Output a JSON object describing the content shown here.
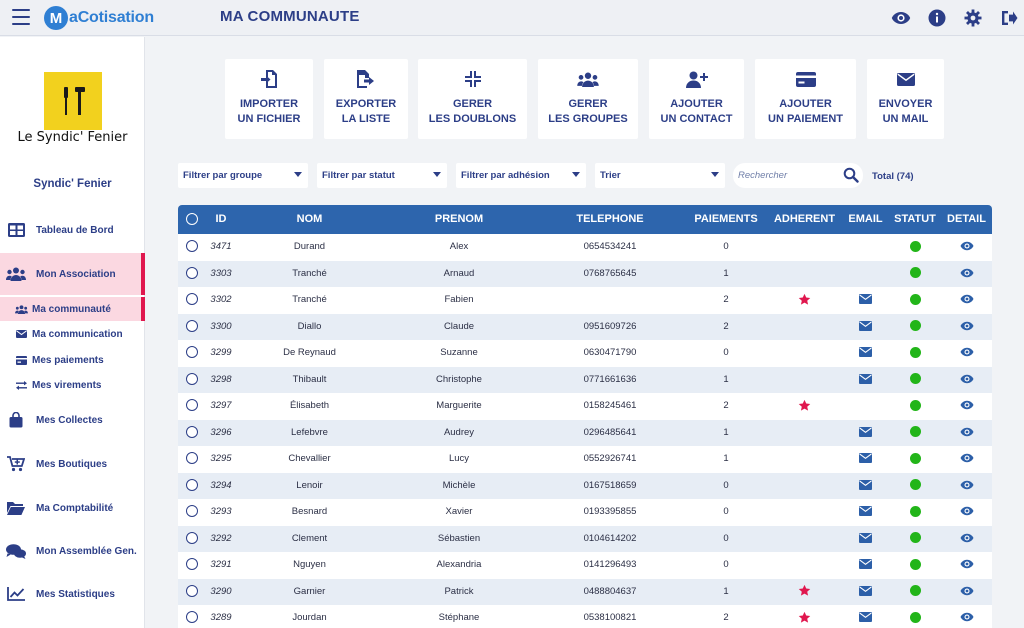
{
  "app": {
    "logo_mark": "M",
    "logo_text": "aCotisation",
    "page_title": "MA COMMUNAUTE",
    "top_icons": [
      "eye-icon",
      "info-icon",
      "gear-icon",
      "logout-icon"
    ]
  },
  "sidebar": {
    "assoc_caption": "Le Syndic' Fenier",
    "assoc_name": "Syndic' Fenier",
    "items": [
      {
        "label": "Tableau de Bord",
        "icon": "dashboard-icon"
      },
      {
        "label": "Mon Association",
        "icon": "users-icon"
      },
      {
        "label": "Ma communauté",
        "icon": "users-small-icon"
      },
      {
        "label": "Ma communication",
        "icon": "envelope-icon"
      },
      {
        "label": "Mes paiements",
        "icon": "card-icon"
      },
      {
        "label": "Mes virements",
        "icon": "transfer-icon"
      },
      {
        "label": "Mes Collectes",
        "icon": "bag-icon"
      },
      {
        "label": "Mes Boutiques",
        "icon": "cart-icon"
      },
      {
        "label": "Ma Comptabilité",
        "icon": "folder-icon"
      },
      {
        "label": "Mon Assemblée Gen.",
        "icon": "chat-icon"
      },
      {
        "label": "Mes Statistiques",
        "icon": "chart-icon"
      }
    ]
  },
  "actions": [
    {
      "label": "IMPORTER\nUN FICHIER",
      "icon": "import-file-icon"
    },
    {
      "label": "EXPORTER\nLA LISTE",
      "icon": "export-file-icon"
    },
    {
      "label": "GERER\nLES DOUBLONS",
      "icon": "compress-icon"
    },
    {
      "label": "GERER\nLES GROUPES",
      "icon": "users-icon"
    },
    {
      "label": "AJOUTER\nUN CONTACT",
      "icon": "user-plus-icon"
    },
    {
      "label": "AJOUTER\nUN PAIEMENT",
      "icon": "card-icon"
    },
    {
      "label": "ENVOYER\nUN MAIL",
      "icon": "envelope-icon"
    }
  ],
  "filters": {
    "group": "Filtrer par groupe",
    "status": "Filtrer par statut",
    "adhesion": "Filtrer par adhésion",
    "sort": "Trier",
    "search_placeholder": "Rechercher",
    "total": "Total (74)"
  },
  "table": {
    "headers": [
      "ID",
      "NOM",
      "PRENOM",
      "TELEPHONE",
      "PAIEMENTS",
      "ADHERENT",
      "EMAIL",
      "STATUT",
      "DETAIL"
    ],
    "status_color": "#22b519",
    "star_color": "#e0174e",
    "rows": [
      {
        "id": "3471",
        "nom": "Durand",
        "prenom": "Alex",
        "tel": "0654534241",
        "paiements": "0",
        "adherent": false,
        "email": false,
        "statut": true
      },
      {
        "id": "3303",
        "nom": "Tranché",
        "prenom": "Arnaud",
        "tel": "0768765645",
        "paiements": "1",
        "adherent": false,
        "email": false,
        "statut": true
      },
      {
        "id": "3302",
        "nom": "Tranché",
        "prenom": "Fabien",
        "tel": "",
        "paiements": "2",
        "adherent": true,
        "email": true,
        "statut": true
      },
      {
        "id": "3300",
        "nom": "Diallo",
        "prenom": "Claude",
        "tel": "0951609726",
        "paiements": "2",
        "adherent": false,
        "email": true,
        "statut": true
      },
      {
        "id": "3299",
        "nom": "De Reynaud",
        "prenom": "Suzanne",
        "tel": "0630471790",
        "paiements": "0",
        "adherent": false,
        "email": true,
        "statut": true
      },
      {
        "id": "3298",
        "nom": "Thibault",
        "prenom": "Christophe",
        "tel": "0771661636",
        "paiements": "1",
        "adherent": false,
        "email": true,
        "statut": true
      },
      {
        "id": "3297",
        "nom": "Élisabeth",
        "prenom": "Marguerite",
        "tel": "0158245461",
        "paiements": "2",
        "adherent": true,
        "email": false,
        "statut": true
      },
      {
        "id": "3296",
        "nom": "Lefebvre",
        "prenom": "Audrey",
        "tel": "0296485641",
        "paiements": "1",
        "adherent": false,
        "email": true,
        "statut": true
      },
      {
        "id": "3295",
        "nom": "Chevallier",
        "prenom": "Lucy",
        "tel": "0552926741",
        "paiements": "1",
        "adherent": false,
        "email": true,
        "statut": true
      },
      {
        "id": "3294",
        "nom": "Lenoir",
        "prenom": "Michèle",
        "tel": "0167518659",
        "paiements": "0",
        "adherent": false,
        "email": true,
        "statut": true
      },
      {
        "id": "3293",
        "nom": "Besnard",
        "prenom": "Xavier",
        "tel": "0193395855",
        "paiements": "0",
        "adherent": false,
        "email": true,
        "statut": true
      },
      {
        "id": "3292",
        "nom": "Clement",
        "prenom": "Sébastien",
        "tel": "0104614202",
        "paiements": "0",
        "adherent": false,
        "email": true,
        "statut": true
      },
      {
        "id": "3291",
        "nom": "Nguyen",
        "prenom": "Alexandria",
        "tel": "0141296493",
        "paiements": "0",
        "adherent": false,
        "email": true,
        "statut": true
      },
      {
        "id": "3290",
        "nom": "Garnier",
        "prenom": "Patrick",
        "tel": "0488804637",
        "paiements": "1",
        "adherent": true,
        "email": true,
        "statut": true
      },
      {
        "id": "3289",
        "nom": "Jourdan",
        "prenom": "Stéphane",
        "tel": "0538100821",
        "paiements": "2",
        "adherent": true,
        "email": true,
        "statut": true
      }
    ]
  }
}
